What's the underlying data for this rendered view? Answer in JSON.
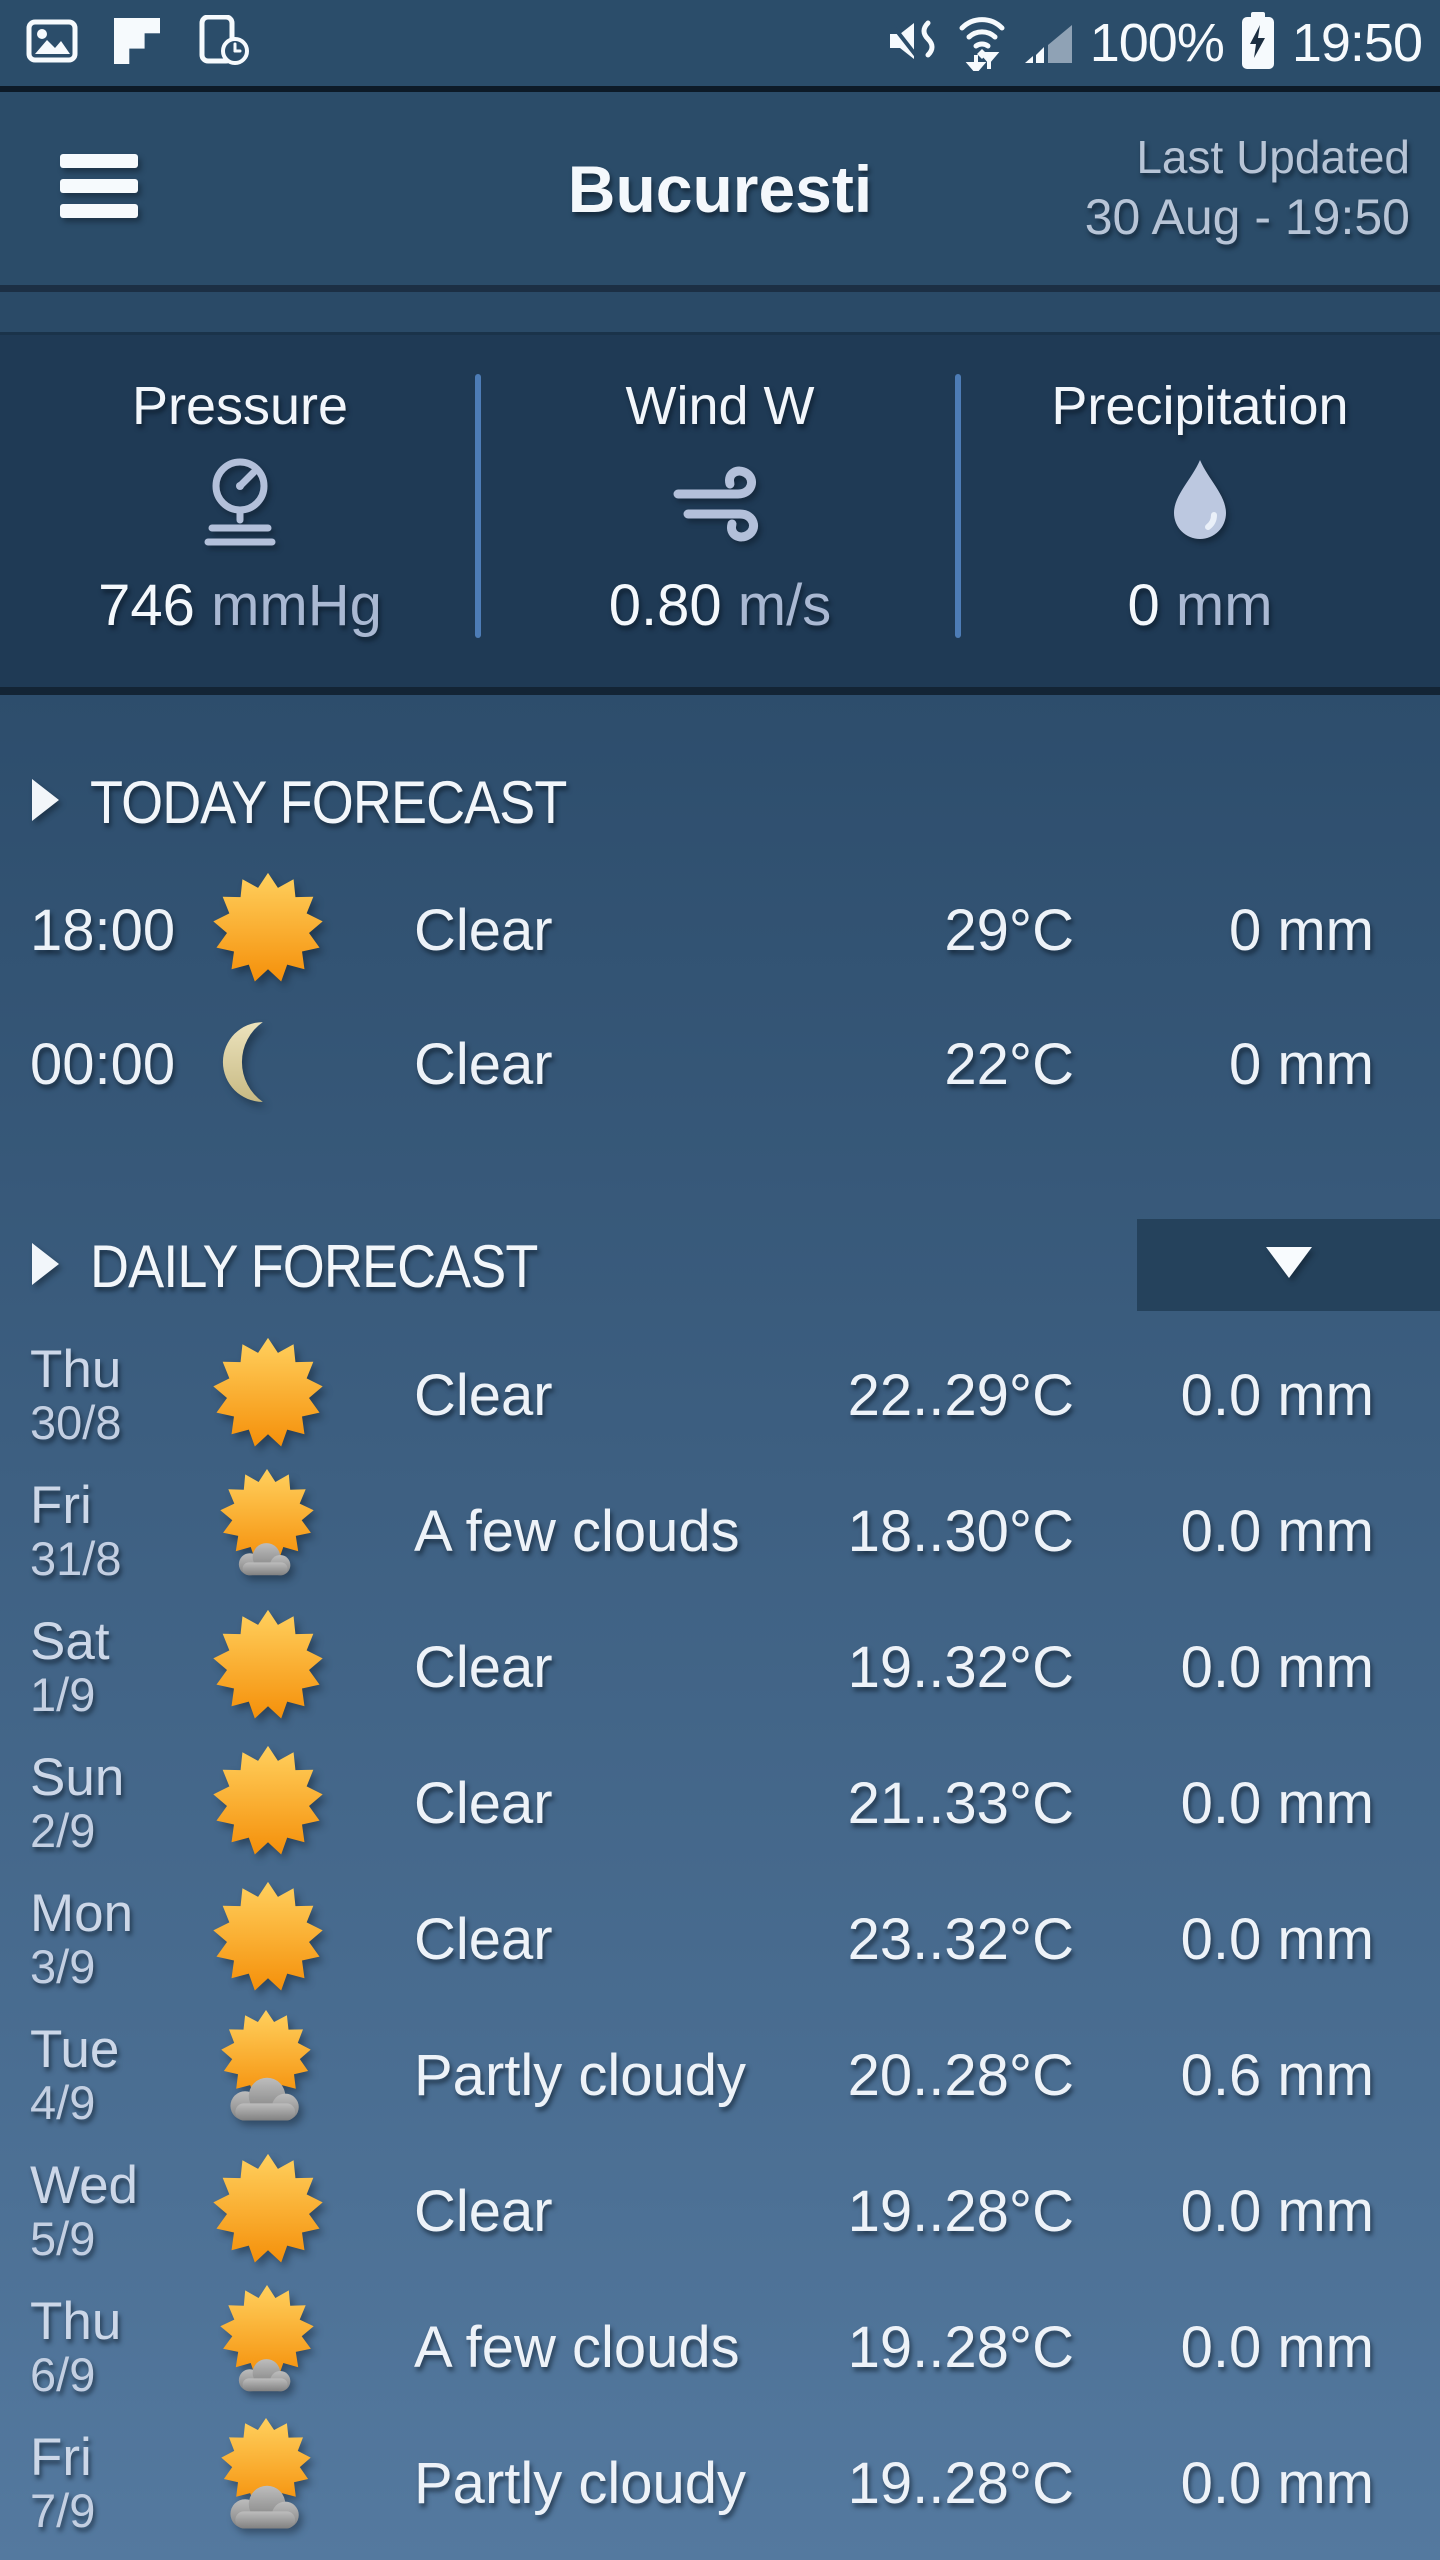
{
  "status_bar": {
    "time": "19:50",
    "battery_percent": "100%",
    "left_icons": [
      "gallery-icon",
      "flipboard-icon",
      "screenshot-clock-icon"
    ],
    "right_icons": [
      "mute-vibrate-icon",
      "wifi-arrows-icon",
      "signal-strength-icon",
      "battery-charging-icon"
    ]
  },
  "header": {
    "title": "Bucuresti",
    "last_updated_label": "Last Updated",
    "last_updated_value": "30 Aug - 19:50"
  },
  "metrics": {
    "pressure": {
      "label": "Pressure",
      "icon": "gauge",
      "value": "746",
      "unit": "mmHg"
    },
    "wind": {
      "label": "Wind W",
      "icon": "wind",
      "value": "0.80",
      "unit": "m/s"
    },
    "precipitation": {
      "label": "Precipitation",
      "icon": "drop",
      "value": "0",
      "unit": "mm"
    }
  },
  "today_forecast": {
    "title": "TODAY FORECAST",
    "rows": [
      {
        "time": "18:00",
        "icon": "sun",
        "condition": "Clear",
        "temp": "29°C",
        "precip": "0 mm"
      },
      {
        "time": "00:00",
        "icon": "moon",
        "condition": "Clear",
        "temp": "22°C",
        "precip": "0 mm"
      }
    ]
  },
  "daily_forecast": {
    "title": "DAILY FORECAST",
    "rows": [
      {
        "day": "Thu",
        "date": "30/8",
        "icon": "sun",
        "condition": "Clear",
        "temp": "22..29°C",
        "precip": "0.0 mm"
      },
      {
        "day": "Fri",
        "date": "31/8",
        "icon": "sun-small-cloud",
        "condition": "A few clouds",
        "temp": "18..30°C",
        "precip": "0.0 mm"
      },
      {
        "day": "Sat",
        "date": "1/9",
        "icon": "sun",
        "condition": "Clear",
        "temp": "19..32°C",
        "precip": "0.0 mm"
      },
      {
        "day": "Sun",
        "date": "2/9",
        "icon": "sun",
        "condition": "Clear",
        "temp": "21..33°C",
        "precip": "0.0 mm"
      },
      {
        "day": "Mon",
        "date": "3/9",
        "icon": "sun",
        "condition": "Clear",
        "temp": "23..32°C",
        "precip": "0.0 mm"
      },
      {
        "day": "Tue",
        "date": "4/9",
        "icon": "sun-cloud",
        "condition": "Partly cloudy",
        "temp": "20..28°C",
        "precip": "0.6 mm"
      },
      {
        "day": "Wed",
        "date": "5/9",
        "icon": "sun",
        "condition": "Clear",
        "temp": "19..28°C",
        "precip": "0.0 mm"
      },
      {
        "day": "Thu",
        "date": "6/9",
        "icon": "sun-small-cloud",
        "condition": "A few clouds",
        "temp": "19..28°C",
        "precip": "0.0 mm"
      },
      {
        "day": "Fri",
        "date": "7/9",
        "icon": "sun-cloud",
        "condition": "Partly cloudy",
        "temp": "19..28°C",
        "precip": "0.0 mm"
      }
    ]
  },
  "colors": {
    "status_bar_bg": "#2b4d6a",
    "header_bg": "#2b4c69",
    "panel_bg": "#1f3a55",
    "bg_gradient_top": "#2d4d6c",
    "bg_gradient_bottom": "#54799f",
    "divider_accent": "#4d7cb6",
    "text_bright": "#edf2f8",
    "text_secondary": "#b7c4d6",
    "sun_top": "#ffd05e",
    "sun_bottom": "#f5900a",
    "moon": "#d9cfa0",
    "cloud": "#9a9a9a"
  }
}
